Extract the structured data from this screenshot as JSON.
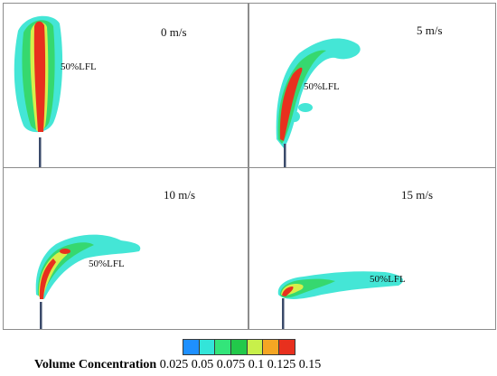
{
  "panels": [
    {
      "speed": "0 m/s",
      "lfl_label": "50%LFL"
    },
    {
      "speed": "5 m/s",
      "lfl_label": "50%LFL"
    },
    {
      "speed": "10 m/s",
      "lfl_label": "50%LFL"
    },
    {
      "speed": "15 m/s",
      "lfl_label": "50%LFL"
    }
  ],
  "legend": {
    "title": "Volume Concentration",
    "ticks": "0.025 0.05 0.075 0.1 0.125 0.15",
    "colors": [
      "#1e90ff",
      "#33e5d9",
      "#33e57a",
      "#22c94a",
      "#c8f04a",
      "#f5a623",
      "#e8301e"
    ]
  },
  "colors": {
    "stack": "#3a4a6a",
    "cyan": "#44e6d6",
    "green": "#36d86f",
    "yellow": "#d6ef4a",
    "red": "#e8301e"
  }
}
